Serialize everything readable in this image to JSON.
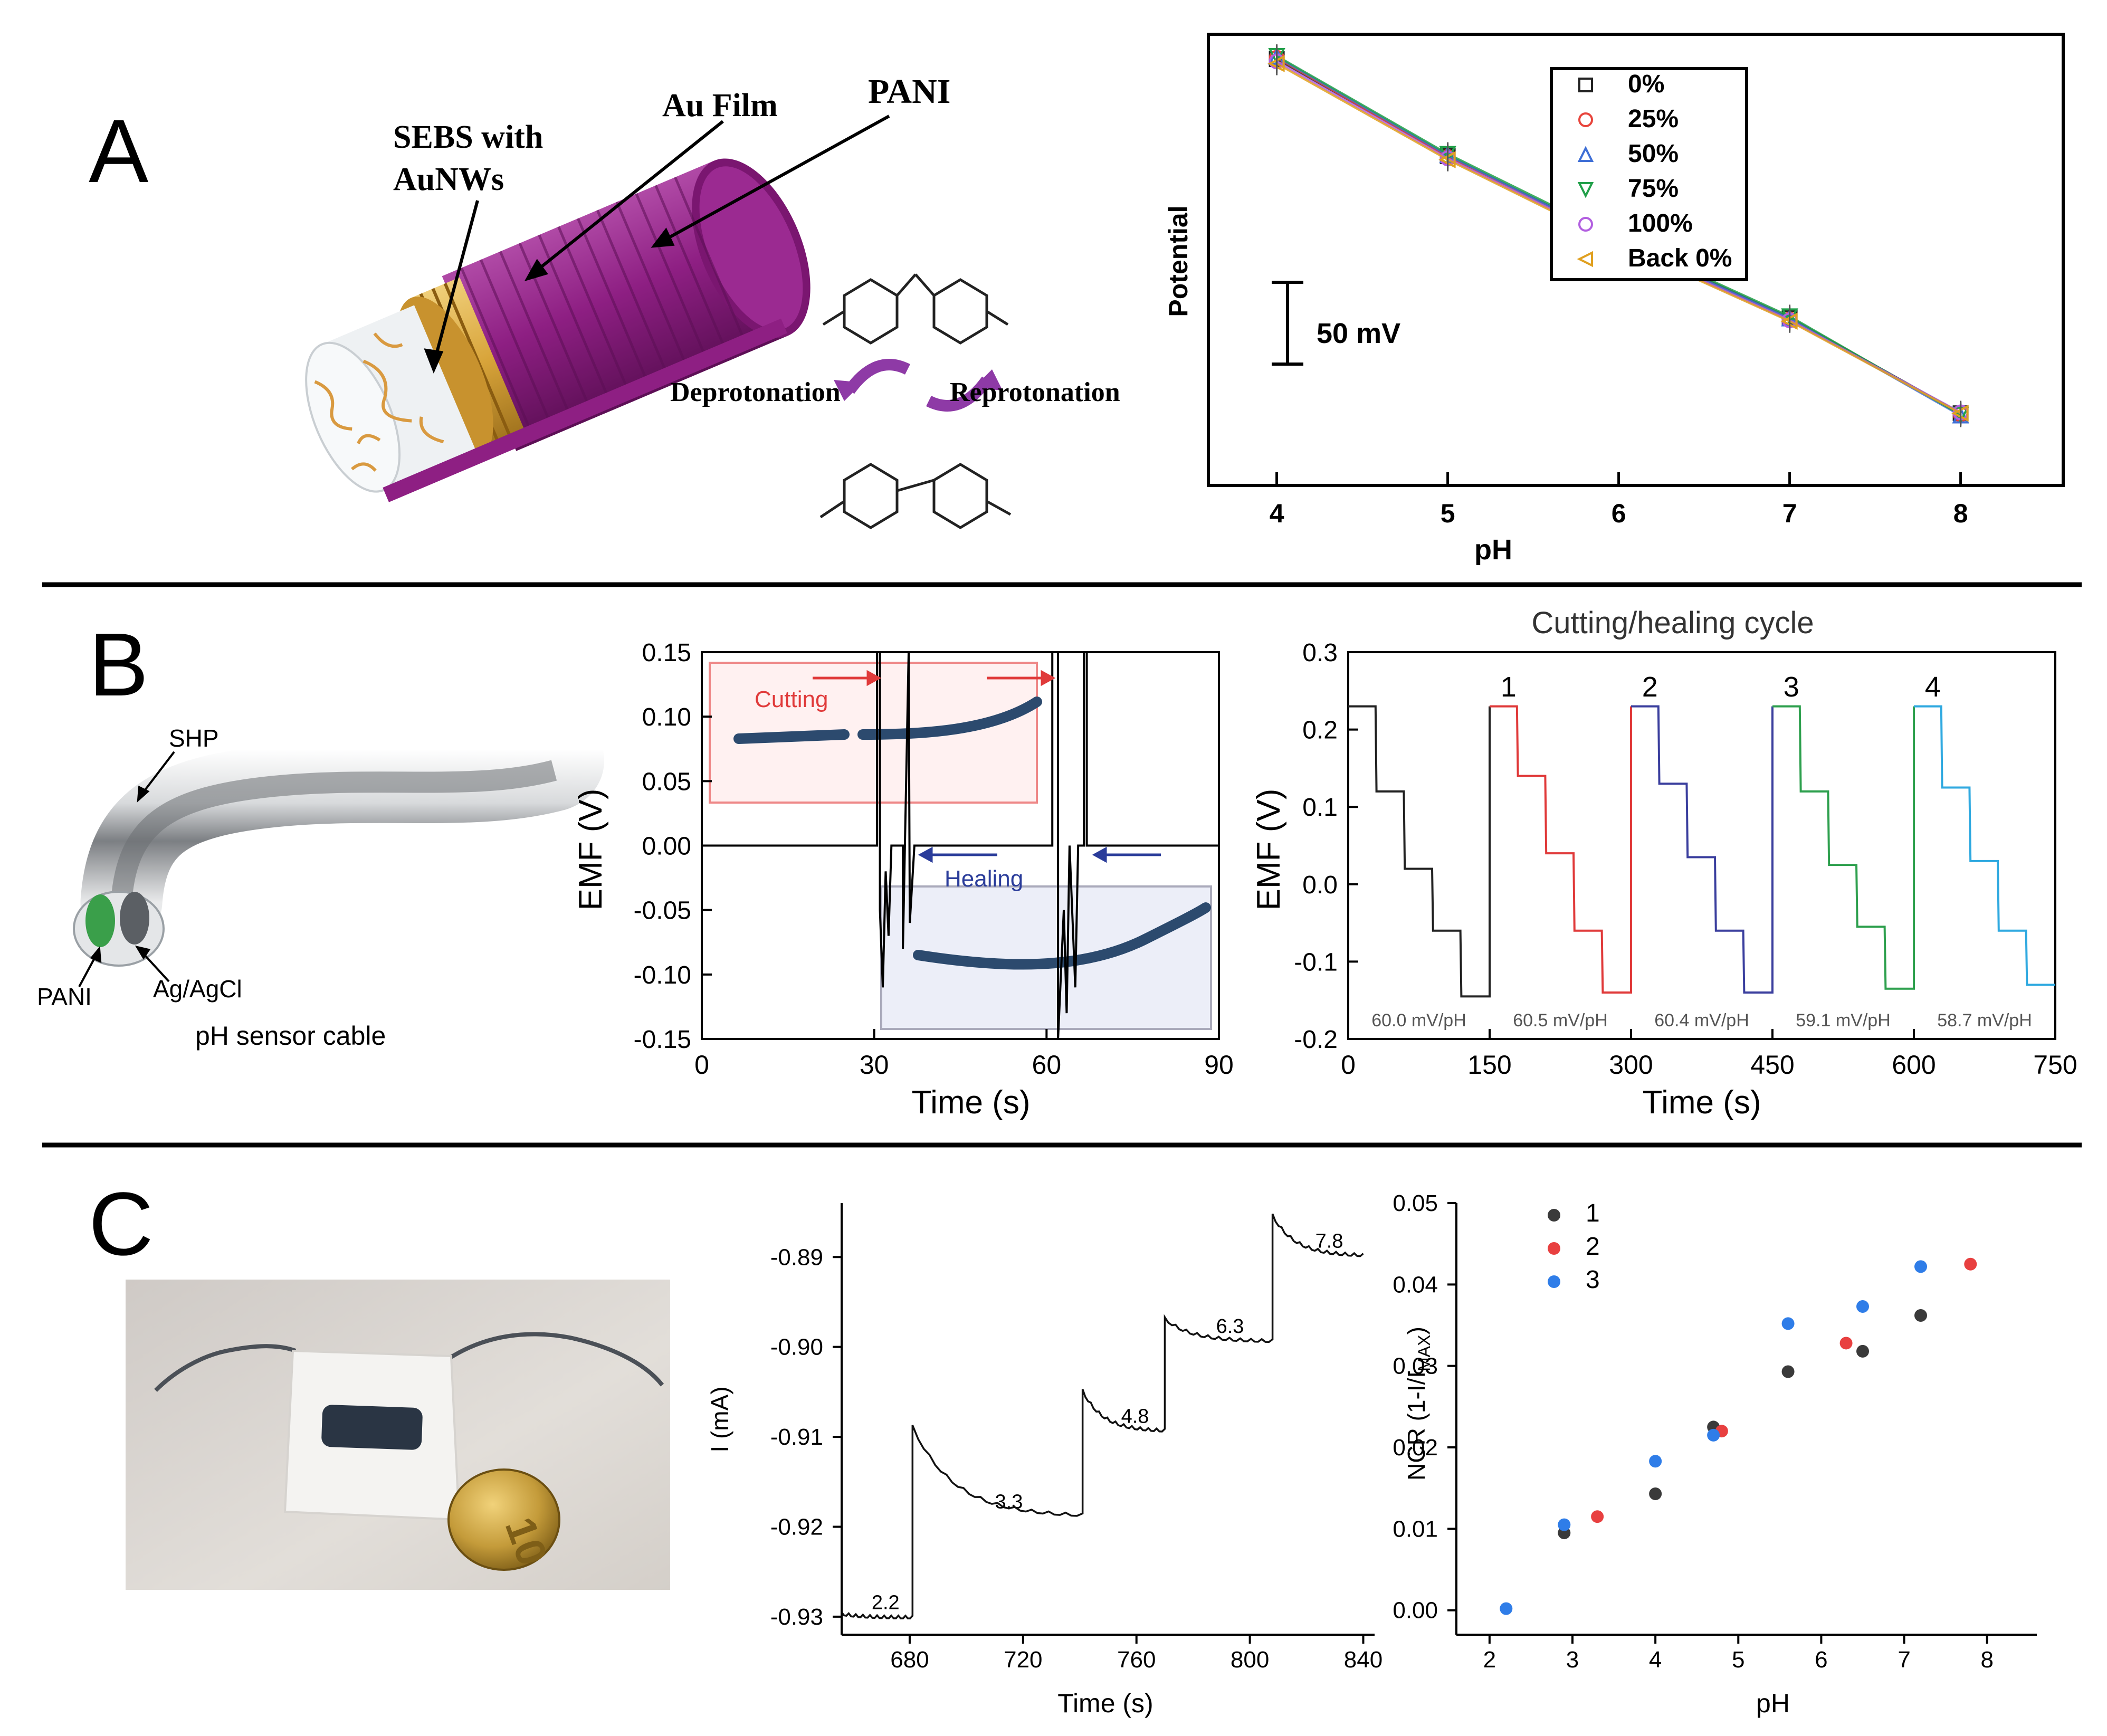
{
  "panels": {
    "A": {
      "letter": "A",
      "schematic": {
        "labels": {
          "sebs": [
            "SEBS with",
            "AuNWs"
          ],
          "au_film": "Au Film",
          "pani": "PANI",
          "deprotonation": "Deprotonation",
          "reprotonation": "Reprotonation"
        },
        "colors": {
          "pani": "#8e1f83",
          "au": "#d8a43a",
          "sebs": "#f1f4f6",
          "nanowire": "#d99a40"
        }
      }
    },
    "B": {
      "letter": "B",
      "cable": {
        "labels": {
          "shp": "SHP",
          "pani": "PANI",
          "ag": "Ag/AgCl",
          "caption": "pH sensor cable"
        }
      }
    },
    "C": {
      "letter": "C",
      "photo": {
        "colors": {
          "background": "#d9d4cf",
          "coin": "#c49b3a",
          "ink": "#2a3544"
        }
      }
    }
  },
  "chart_data": [
    {
      "id": "A-potential-vs-pH",
      "type": "line",
      "xlabel": "pH",
      "ylabel": "Potential",
      "xlim": [
        3.6,
        8.6
      ],
      "ylim": [
        0,
        1
      ],
      "xticks": [
        4,
        5,
        6,
        7,
        8
      ],
      "scale_bar": {
        "label": "50 mV",
        "value": 50
      },
      "legend": {
        "position": "top-right",
        "entries": [
          {
            "label": "0%",
            "marker": "□",
            "color": "#222222"
          },
          {
            "label": "25%",
            "marker": "○",
            "color": "#e8453c"
          },
          {
            "label": "50%",
            "marker": "△",
            "color": "#3f6fd6"
          },
          {
            "label": "75%",
            "marker": "▽",
            "color": "#22a04a"
          },
          {
            "label": "100%",
            "marker": "○",
            "color": "#b25fe0"
          },
          {
            "label": "Back 0%",
            "marker": "◁",
            "color": "#e0a020"
          }
        ]
      },
      "series_x": [
        4,
        5,
        6,
        7,
        8
      ],
      "series": [
        {
          "name": "0%",
          "color": "#222222",
          "values": [
            0.945,
            0.73,
            0.545,
            0.372,
            0.16
          ]
        },
        {
          "name": "25%",
          "color": "#e8453c",
          "values": [
            0.948,
            0.728,
            0.54,
            0.368,
            0.158
          ]
        },
        {
          "name": "50%",
          "color": "#3f6fd6",
          "values": [
            0.95,
            0.732,
            0.542,
            0.37,
            0.155
          ]
        },
        {
          "name": "75%",
          "color": "#22a04a",
          "values": [
            0.952,
            0.735,
            0.548,
            0.375,
            0.157
          ]
        },
        {
          "name": "100%",
          "color": "#b25fe0",
          "values": [
            0.94,
            0.725,
            0.538,
            0.366,
            0.162
          ]
        },
        {
          "name": "Back 0%",
          "color": "#e0a020",
          "values": [
            0.935,
            0.722,
            0.535,
            0.364,
            0.16
          ]
        }
      ]
    },
    {
      "id": "B-emf-cutting-healing",
      "type": "line",
      "xlabel": "Time (s)",
      "ylabel": "EMF (V)",
      "xlim": [
        0,
        90
      ],
      "ylim": [
        -0.15,
        0.15
      ],
      "xticks": [
        0,
        30,
        60,
        90
      ],
      "yticks": [
        -0.15,
        -0.1,
        -0.05,
        0.0,
        0.05,
        0.1,
        0.15
      ],
      "ytick_labels": [
        "-0.15",
        "-0.10",
        "-0.05",
        "0.00",
        "0.05",
        "0.10",
        "0.15"
      ],
      "annotations": {
        "cutting": "Cutting",
        "healing": "Healing"
      },
      "colors": {
        "cutting": "#e03a3a",
        "healing": "#2a3c9a"
      },
      "trace": [
        [
          0,
          0.0
        ],
        [
          30.5,
          0.0
        ],
        [
          30.5,
          0.15
        ],
        [
          31,
          0.15
        ],
        [
          31,
          -0.05
        ],
        [
          31.5,
          -0.11
        ],
        [
          32,
          -0.02
        ],
        [
          32.5,
          -0.07
        ],
        [
          33,
          0.0
        ],
        [
          35,
          0.0
        ],
        [
          35,
          -0.08
        ],
        [
          36,
          0.15
        ],
        [
          36.2,
          -0.06
        ],
        [
          37,
          0.0
        ],
        [
          61,
          0.0
        ],
        [
          61,
          0.15
        ],
        [
          62,
          0.15
        ],
        [
          62,
          -0.15
        ],
        [
          63,
          -0.05
        ],
        [
          63.5,
          -0.13
        ],
        [
          64,
          0.0
        ],
        [
          65,
          -0.11
        ],
        [
          65.5,
          0.0
        ],
        [
          66.5,
          0.0
        ],
        [
          66.5,
          0.15
        ],
        [
          67,
          0.15
        ],
        [
          67,
          0.0
        ],
        [
          90,
          0.0
        ]
      ]
    },
    {
      "id": "B-cutting-healing-cycle",
      "type": "line",
      "title": "Cutting/healing cycle",
      "xlabel": "Time (s)",
      "ylabel": "EMF (V)",
      "xlim": [
        0,
        750
      ],
      "ylim": [
        -0.2,
        0.3
      ],
      "xticks": [
        0,
        150,
        300,
        450,
        600,
        750
      ],
      "yticks": [
        -0.2,
        -0.1,
        0.0,
        0.1,
        0.2,
        0.3
      ],
      "ytick_labels": [
        "-0.2",
        "-0.1",
        "0.0",
        "0.1",
        "0.2",
        "0.3"
      ],
      "series": [
        {
          "name": "0",
          "label": "",
          "color": "#222222",
          "slope_label": "60.0 mV/pH",
          "start": 0,
          "levels": [
            0.23,
            0.12,
            0.02,
            -0.06,
            -0.145
          ]
        },
        {
          "name": "1",
          "label": "1",
          "color": "#e03a3a",
          "slope_label": "60.5 mV/pH",
          "start": 150,
          "levels": [
            0.23,
            0.14,
            0.04,
            -0.06,
            -0.14
          ]
        },
        {
          "name": "2",
          "label": "2",
          "color": "#3b3f9e",
          "slope_label": "60.4 mV/pH",
          "start": 300,
          "levels": [
            0.23,
            0.13,
            0.035,
            -0.06,
            -0.14
          ]
        },
        {
          "name": "3",
          "label": "3",
          "color": "#2ea04e",
          "slope_label": "59.1 mV/pH",
          "start": 450,
          "levels": [
            0.23,
            0.12,
            0.025,
            -0.055,
            -0.135
          ]
        },
        {
          "name": "4",
          "label": "4",
          "color": "#2fa9e0",
          "slope_label": "58.7 mV/pH",
          "start": 600,
          "levels": [
            0.23,
            0.125,
            0.03,
            -0.06,
            -0.13
          ]
        }
      ]
    },
    {
      "id": "C-current-vs-time",
      "type": "line",
      "xlabel": "Time (s)",
      "ylabel": "I (mA)",
      "xlim": [
        656,
        844
      ],
      "ylim": [
        -0.932,
        -0.884
      ],
      "xticks": [
        680,
        720,
        760,
        800,
        840
      ],
      "yticks": [
        -0.93,
        -0.92,
        -0.91,
        -0.9,
        -0.89
      ],
      "ytick_labels": [
        "-0.93",
        "-0.92",
        "-0.91",
        "-0.90",
        "-0.89"
      ],
      "steps": [
        {
          "label": "2.2",
          "t0": 656,
          "t1": 681,
          "peak": -0.9298,
          "end": -0.9302
        },
        {
          "label": "3.3",
          "t0": 681,
          "t1": 741,
          "peak": -0.909,
          "end": -0.919
        },
        {
          "label": "4.8",
          "t0": 741,
          "t1": 770,
          "peak": -0.905,
          "end": -0.9095
        },
        {
          "label": "6.3",
          "t0": 770,
          "t1": 808,
          "peak": -0.897,
          "end": -0.8995
        },
        {
          "label": "7.8",
          "t0": 808,
          "t1": 840,
          "peak": -0.8855,
          "end": -0.89
        }
      ]
    },
    {
      "id": "C-NCR-vs-pH",
      "type": "scatter",
      "xlabel": "pH",
      "ylabel": "NCR (1-I/I",
      "ylabel_sub": "MAX",
      "ylabel_end": ")",
      "xlim": [
        1.6,
        8.6
      ],
      "ylim": [
        -0.003,
        0.05
      ],
      "xticks": [
        2,
        3,
        4,
        5,
        6,
        7,
        8
      ],
      "yticks": [
        0.0,
        0.01,
        0.02,
        0.03,
        0.04,
        0.05
      ],
      "ytick_labels": [
        "0.00",
        "0.01",
        "0.02",
        "0.03",
        "0.04",
        "0.05"
      ],
      "legend": {
        "position": "top-left"
      },
      "series": [
        {
          "name": "1",
          "color": "#3a3a3a",
          "points": [
            [
              2.9,
              0.0095
            ],
            [
              4.0,
              0.0143
            ],
            [
              4.7,
              0.0225
            ],
            [
              5.6,
              0.0293
            ],
            [
              6.5,
              0.0318
            ],
            [
              7.2,
              0.0362
            ]
          ]
        },
        {
          "name": "2",
          "color": "#e84040",
          "points": [
            [
              3.3,
              0.0115
            ],
            [
              4.8,
              0.022
            ],
            [
              6.3,
              0.0328
            ],
            [
              7.8,
              0.0425
            ]
          ]
        },
        {
          "name": "3",
          "color": "#2f7de8",
          "points": [
            [
              2.2,
              0.0002
            ],
            [
              2.9,
              0.0105
            ],
            [
              4.0,
              0.0183
            ],
            [
              4.7,
              0.0215
            ],
            [
              5.6,
              0.0352
            ],
            [
              6.5,
              0.0373
            ],
            [
              7.2,
              0.0422
            ]
          ]
        }
      ]
    }
  ]
}
